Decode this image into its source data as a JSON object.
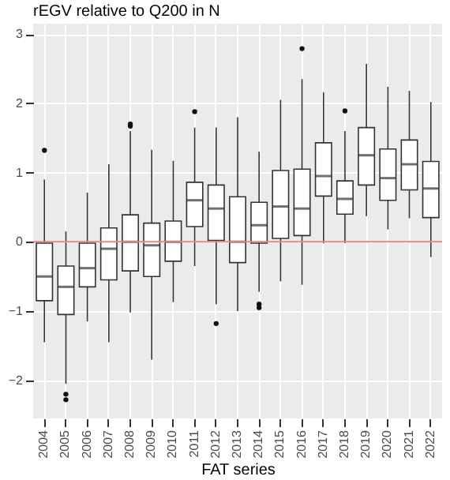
{
  "chart_data": {
    "type": "box",
    "title": "rEGV relative to Q200 in N",
    "xlabel": "FAT series",
    "categories": [
      "2004",
      "2005",
      "2006",
      "2007",
      "2008",
      "2009",
      "2010",
      "2011",
      "2012",
      "2013",
      "2014",
      "2015",
      "2016",
      "2017",
      "2018",
      "2019",
      "2020",
      "2021",
      "2022"
    ],
    "boxes": [
      {
        "low": -1.45,
        "q1": -0.85,
        "median": -0.5,
        "q3": -0.02,
        "high": 0.9,
        "outliers": [
          1.32
        ]
      },
      {
        "low": -2.05,
        "q1": -1.05,
        "median": -0.65,
        "q3": -0.35,
        "high": 0.15,
        "outliers": [
          -2.2,
          -2.28
        ]
      },
      {
        "low": -1.15,
        "q1": -0.65,
        "median": -0.38,
        "q3": -0.02,
        "high": 0.71
      },
      {
        "low": -1.45,
        "q1": -0.55,
        "median": -0.1,
        "q3": 0.2,
        "high": 1.12
      },
      {
        "low": -1.02,
        "q1": -0.42,
        "median": 0.0,
        "q3": 0.39,
        "high": 1.6,
        "outliers": [
          1.67,
          1.7
        ]
      },
      {
        "low": -1.7,
        "q1": -0.5,
        "median": -0.05,
        "q3": 0.27,
        "high": 1.33
      },
      {
        "low": -0.87,
        "q1": -0.28,
        "median": 0.0,
        "q3": 0.3,
        "high": 1.17
      },
      {
        "low": -0.35,
        "q1": 0.22,
        "median": 0.6,
        "q3": 0.86,
        "high": 1.65,
        "outliers": [
          1.88
        ]
      },
      {
        "low": -0.9,
        "q1": 0.02,
        "median": 0.48,
        "q3": 0.82,
        "high": 1.65,
        "outliers": [
          -1.18
        ]
      },
      {
        "low": -1.0,
        "q1": -0.3,
        "median": 0.0,
        "q3": 0.65,
        "high": 1.8
      },
      {
        "low": -0.72,
        "q1": -0.02,
        "median": 0.24,
        "q3": 0.57,
        "high": 1.3,
        "outliers": [
          -0.9,
          -0.95
        ]
      },
      {
        "low": -0.57,
        "q1": 0.05,
        "median": 0.51,
        "q3": 1.03,
        "high": 2.05
      },
      {
        "low": -0.62,
        "q1": 0.09,
        "median": 0.48,
        "q3": 1.05,
        "high": 2.35,
        "outliers": [
          2.79
        ]
      },
      {
        "low": -0.02,
        "q1": 0.66,
        "median": 0.95,
        "q3": 1.43,
        "high": 2.16
      },
      {
        "low": -0.02,
        "q1": 0.4,
        "median": 0.62,
        "q3": 0.88,
        "high": 1.6,
        "outliers": [
          1.89
        ]
      },
      {
        "low": 0.37,
        "q1": 0.82,
        "median": 1.25,
        "q3": 1.65,
        "high": 2.57
      },
      {
        "low": 0.18,
        "q1": 0.6,
        "median": 0.92,
        "q3": 1.34,
        "high": 2.24
      },
      {
        "low": 0.34,
        "q1": 0.75,
        "median": 1.12,
        "q3": 1.47,
        "high": 2.18
      },
      {
        "low": -0.22,
        "q1": 0.35,
        "median": 0.77,
        "q3": 1.16,
        "high": 2.02
      }
    ],
    "ylim": [
      -2.55,
      3.15
    ],
    "yticks": [
      -2,
      -1,
      0,
      1,
      2,
      3
    ],
    "grid": true,
    "ref_lines": [
      {
        "axis": "y",
        "value": 0,
        "color": "#e8877f"
      }
    ]
  }
}
